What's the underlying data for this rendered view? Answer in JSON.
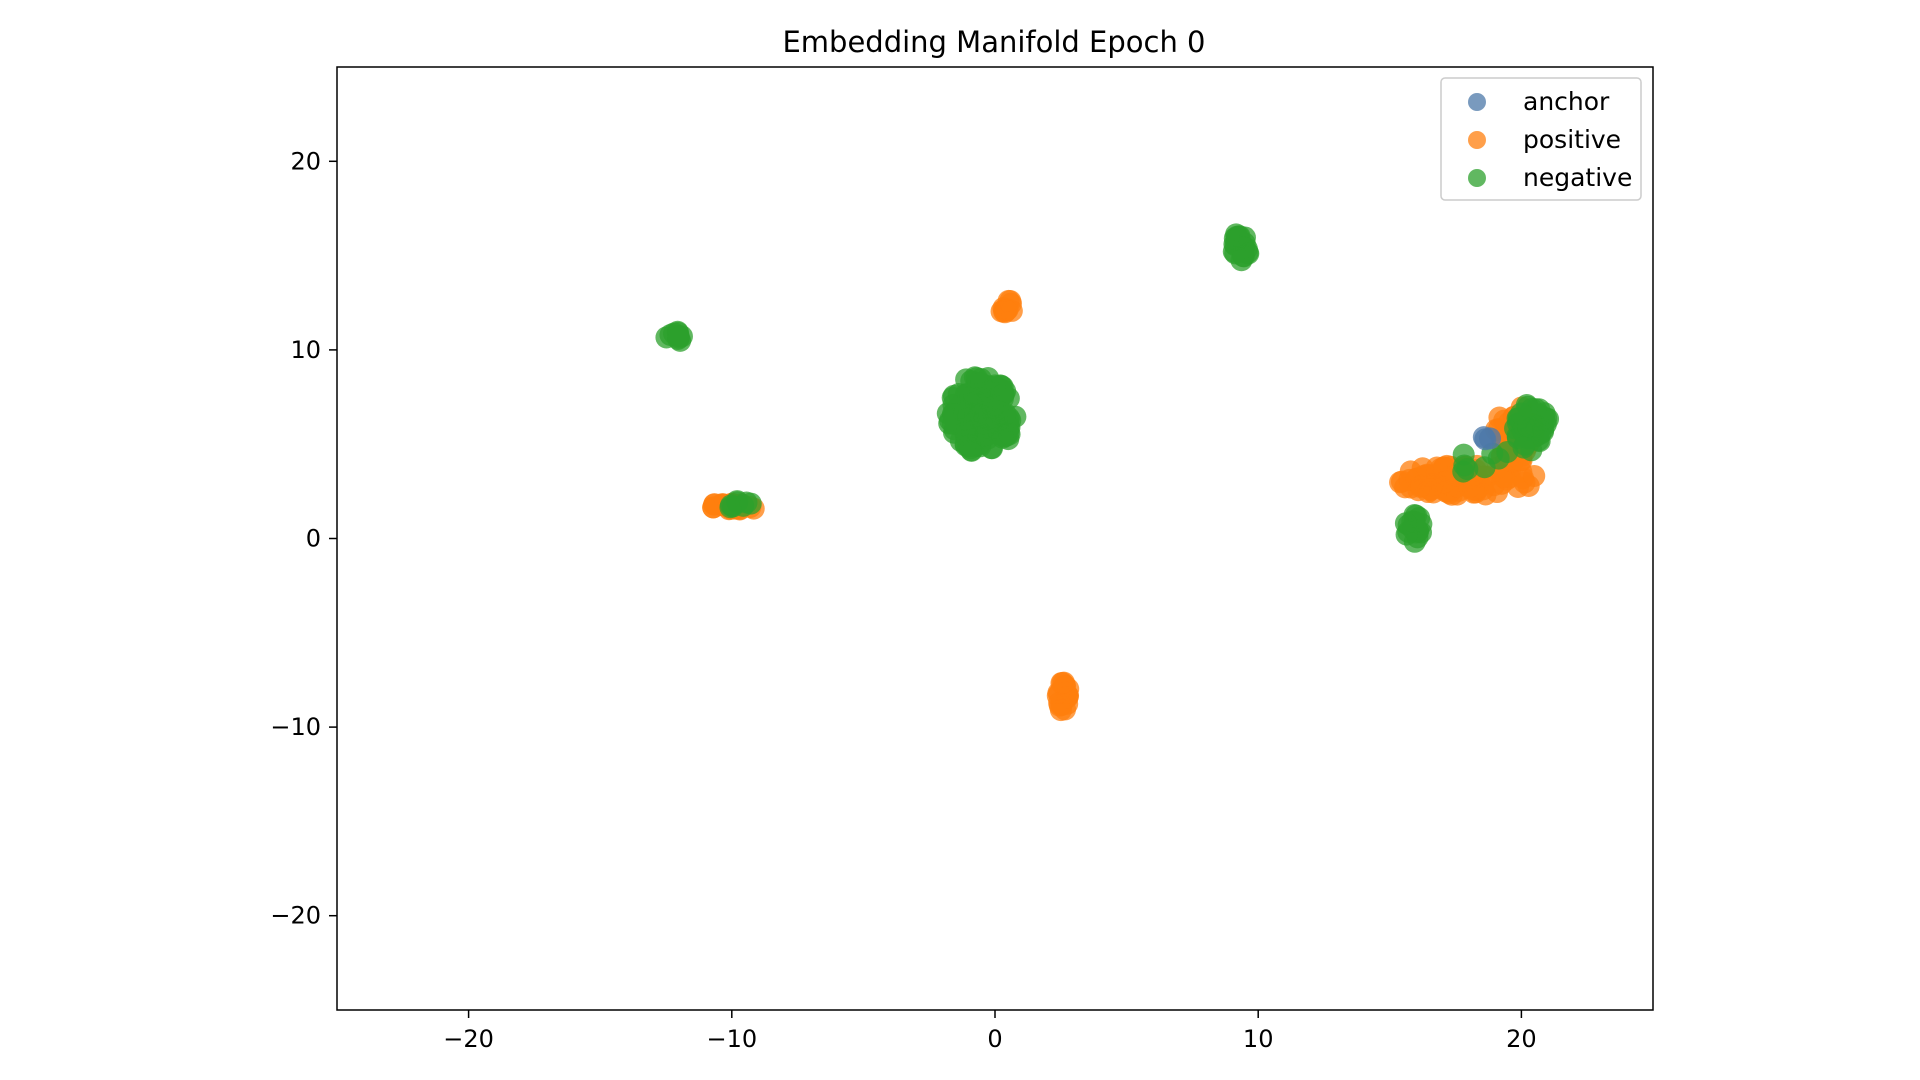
{
  "chart_data": {
    "type": "scatter",
    "title": "Embedding Manifold Epoch 0",
    "xlabel": "",
    "ylabel": "",
    "xlim": [
      -25,
      25
    ],
    "ylim": [
      -25,
      25
    ],
    "xticks": [
      -20,
      -10,
      0,
      10,
      20
    ],
    "yticks": [
      -20,
      -10,
      0,
      10,
      20
    ],
    "xtick_labels": [
      "−20",
      "−10",
      "0",
      "10",
      "20"
    ],
    "ytick_labels": [
      "−20",
      "−10",
      "0",
      "10",
      "20"
    ],
    "grid": false,
    "legend_position": "top-right",
    "series": [
      {
        "name": "anchor",
        "color": "#4c78a8",
        "clusters": [
          {
            "cx": 18.6,
            "cy": 5.2,
            "rx": 0.25,
            "ry": 0.25,
            "n": 3
          }
        ]
      },
      {
        "name": "positive",
        "color": "#ff7f0e",
        "clusters": [
          {
            "cx": 0.45,
            "cy": 12.3,
            "rx": 0.3,
            "ry": 0.35,
            "n": 12
          },
          {
            "cx": -9.9,
            "cy": 1.7,
            "rx": 0.9,
            "ry": 0.25,
            "n": 24
          },
          {
            "cx": 2.6,
            "cy": -8.4,
            "rx": 0.22,
            "ry": 0.85,
            "n": 20
          },
          {
            "cx": 17.9,
            "cy": 3.1,
            "rx": 2.7,
            "ry": 0.8,
            "n": 90
          },
          {
            "cx": 19.8,
            "cy": 5.6,
            "rx": 0.8,
            "ry": 1.7,
            "n": 45
          }
        ]
      },
      {
        "name": "negative",
        "color": "#2ca02c",
        "clusters": [
          {
            "cx": -12.1,
            "cy": 10.7,
            "rx": 0.4,
            "ry": 0.3,
            "n": 10
          },
          {
            "cx": 9.35,
            "cy": 15.5,
            "rx": 0.32,
            "ry": 0.8,
            "n": 22
          },
          {
            "cx": -0.5,
            "cy": 6.6,
            "rx": 1.3,
            "ry": 2.1,
            "n": 140
          },
          {
            "cx": -9.7,
            "cy": 1.8,
            "rx": 0.45,
            "ry": 0.25,
            "n": 8
          },
          {
            "cx": 20.4,
            "cy": 5.9,
            "rx": 0.7,
            "ry": 1.3,
            "n": 45
          },
          {
            "cx": 15.9,
            "cy": 0.6,
            "rx": 0.35,
            "ry": 0.8,
            "n": 18
          },
          {
            "cx": 18.6,
            "cy": 4.2,
            "rx": 1.6,
            "ry": 0.8,
            "n": 8
          }
        ]
      }
    ]
  }
}
